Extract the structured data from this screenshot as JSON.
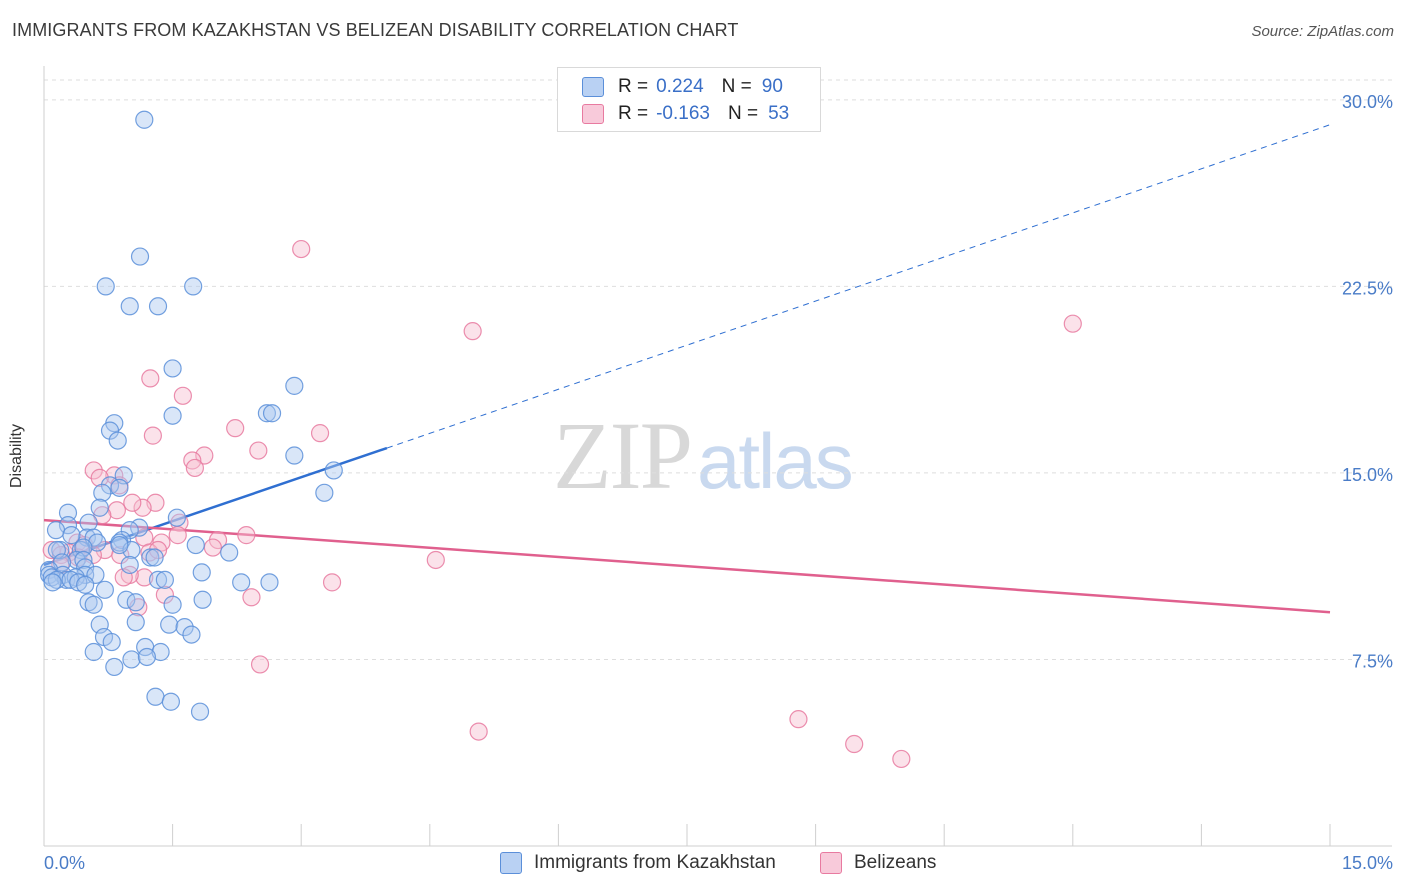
{
  "title": "IMMIGRANTS FROM KAZAKHSTAN VS BELIZEAN DISABILITY CORRELATION CHART",
  "source": "Source: ZipAtlas.com",
  "watermark": {
    "part1": "ZIP",
    "part2": "atlas"
  },
  "legend": {
    "series1": {
      "r_label": "R =",
      "r_value": "0.224",
      "n_label": "N =",
      "n_value": "90"
    },
    "series2": {
      "r_label": "R =",
      "r_value": "-0.163",
      "n_label": "N =",
      "n_value": "53"
    }
  },
  "colors": {
    "blue": "#5b8fd9",
    "blue_fill": "#aac7f0",
    "blue_line": "#2f6fd1",
    "pink": "#e87aa0",
    "pink_fill": "#f6bfd1",
    "pink_line": "#e0608e",
    "tick_text": "#4a7cc7",
    "grid": "#dedede"
  },
  "chart_data": {
    "type": "scatter",
    "title": "IMMIGRANTS FROM KAZAKHSTAN VS BELIZEAN DISABILITY CORRELATION CHART",
    "xlabel": "",
    "ylabel": "Disability",
    "xlim": [
      0,
      15
    ],
    "ylim": [
      0,
      31.2
    ],
    "x_tick_labels": [
      "0.0%",
      "15.0%"
    ],
    "y_tick_values": [
      7.5,
      15.0,
      22.5,
      30.0
    ],
    "y_tick_labels": [
      "7.5%",
      "15.0%",
      "22.5%",
      "30.0%"
    ],
    "grid": true,
    "legend_position": "top-center",
    "series": [
      {
        "name": "Immigrants from Kazakhstan",
        "color": "#5b8fd9",
        "trend": {
          "x0": 0.0,
          "y0": 11.3,
          "x1": 4.0,
          "y1": 16.0,
          "dashed_to_x": 15.0,
          "dashed_to_y": 29.0
        },
        "points": [
          [
            1.17,
            29.2
          ],
          [
            1.12,
            23.7
          ],
          [
            0.72,
            22.5
          ],
          [
            1.74,
            22.5
          ],
          [
            1.0,
            21.7
          ],
          [
            1.33,
            21.7
          ],
          [
            1.5,
            19.2
          ],
          [
            2.92,
            18.5
          ],
          [
            2.6,
            17.4
          ],
          [
            2.66,
            17.4
          ],
          [
            1.5,
            17.3
          ],
          [
            0.82,
            17.0
          ],
          [
            0.77,
            16.7
          ],
          [
            0.86,
            16.3
          ],
          [
            2.92,
            15.7
          ],
          [
            3.38,
            15.1
          ],
          [
            0.93,
            14.9
          ],
          [
            0.77,
            14.5
          ],
          [
            0.88,
            14.4
          ],
          [
            3.27,
            14.2
          ],
          [
            0.68,
            14.2
          ],
          [
            0.65,
            13.6
          ],
          [
            0.28,
            13.4
          ],
          [
            1.55,
            13.2
          ],
          [
            0.52,
            13.0
          ],
          [
            0.28,
            12.9
          ],
          [
            0.14,
            12.7
          ],
          [
            1.11,
            12.8
          ],
          [
            1.0,
            12.7
          ],
          [
            0.5,
            12.4
          ],
          [
            0.58,
            12.4
          ],
          [
            0.32,
            12.5
          ],
          [
            0.91,
            12.3
          ],
          [
            0.88,
            12.2
          ],
          [
            0.62,
            12.2
          ],
          [
            0.43,
            11.9
          ],
          [
            0.19,
            11.9
          ],
          [
            1.02,
            11.9
          ],
          [
            0.88,
            12.1
          ],
          [
            1.77,
            12.1
          ],
          [
            0.46,
            12.0
          ],
          [
            0.15,
            11.9
          ],
          [
            2.16,
            11.8
          ],
          [
            1.24,
            11.6
          ],
          [
            1.29,
            11.6
          ],
          [
            0.38,
            11.5
          ],
          [
            0.46,
            11.5
          ],
          [
            0.21,
            11.4
          ],
          [
            0.06,
            11.1
          ],
          [
            0.48,
            11.2
          ],
          [
            1.0,
            11.3
          ],
          [
            0.06,
            10.9
          ],
          [
            0.22,
            10.9
          ],
          [
            0.48,
            10.9
          ],
          [
            0.09,
            10.8
          ],
          [
            0.26,
            10.7
          ],
          [
            0.37,
            10.8
          ],
          [
            0.6,
            10.9
          ],
          [
            0.15,
            10.7
          ],
          [
            0.31,
            10.7
          ],
          [
            0.1,
            10.6
          ],
          [
            0.4,
            10.6
          ],
          [
            0.48,
            10.5
          ],
          [
            1.33,
            10.7
          ],
          [
            1.41,
            10.7
          ],
          [
            1.84,
            11.0
          ],
          [
            2.3,
            10.6
          ],
          [
            2.63,
            10.6
          ],
          [
            0.71,
            10.3
          ],
          [
            0.52,
            9.8
          ],
          [
            0.58,
            9.7
          ],
          [
            0.96,
            9.9
          ],
          [
            1.07,
            9.8
          ],
          [
            1.5,
            9.7
          ],
          [
            1.85,
            9.9
          ],
          [
            0.65,
            8.9
          ],
          [
            1.07,
            9.0
          ],
          [
            1.46,
            8.9
          ],
          [
            1.64,
            8.8
          ],
          [
            0.7,
            8.4
          ],
          [
            1.18,
            8.0
          ],
          [
            1.72,
            8.5
          ],
          [
            0.79,
            8.2
          ],
          [
            0.58,
            7.8
          ],
          [
            1.02,
            7.5
          ],
          [
            1.36,
            7.8
          ],
          [
            1.2,
            7.6
          ],
          [
            0.82,
            7.2
          ],
          [
            1.3,
            6.0
          ],
          [
            1.48,
            5.8
          ],
          [
            1.82,
            5.4
          ]
        ]
      },
      {
        "name": "Belizeans",
        "color": "#e87aa0",
        "trend": {
          "x0": 0.0,
          "y0": 13.1,
          "x1": 15.0,
          "y1": 9.4
        },
        "points": [
          [
            3.0,
            24.0
          ],
          [
            5.0,
            20.7
          ],
          [
            12.0,
            21.0
          ],
          [
            1.24,
            18.8
          ],
          [
            1.62,
            18.1
          ],
          [
            2.23,
            16.8
          ],
          [
            3.22,
            16.6
          ],
          [
            1.27,
            16.5
          ],
          [
            2.5,
            15.9
          ],
          [
            1.87,
            15.7
          ],
          [
            1.73,
            15.5
          ],
          [
            1.76,
            15.2
          ],
          [
            0.58,
            15.1
          ],
          [
            0.82,
            14.9
          ],
          [
            0.65,
            14.8
          ],
          [
            0.88,
            14.5
          ],
          [
            1.3,
            13.8
          ],
          [
            1.15,
            13.6
          ],
          [
            1.03,
            13.8
          ],
          [
            0.85,
            13.5
          ],
          [
            0.68,
            13.3
          ],
          [
            1.58,
            13.0
          ],
          [
            1.56,
            12.5
          ],
          [
            0.39,
            12.2
          ],
          [
            1.17,
            12.4
          ],
          [
            2.03,
            12.3
          ],
          [
            2.36,
            12.5
          ],
          [
            0.47,
            12.1
          ],
          [
            1.37,
            12.2
          ],
          [
            0.29,
            11.8
          ],
          [
            0.71,
            11.9
          ],
          [
            1.23,
            11.8
          ],
          [
            1.33,
            11.9
          ],
          [
            1.97,
            12.0
          ],
          [
            0.09,
            11.9
          ],
          [
            0.2,
            11.7
          ],
          [
            0.4,
            11.6
          ],
          [
            0.57,
            11.7
          ],
          [
            0.89,
            11.7
          ],
          [
            0.19,
            11.3
          ],
          [
            4.57,
            11.5
          ],
          [
            1.17,
            10.8
          ],
          [
            1.0,
            10.9
          ],
          [
            0.93,
            10.8
          ],
          [
            1.41,
            10.1
          ],
          [
            2.42,
            10.0
          ],
          [
            3.36,
            10.6
          ],
          [
            1.1,
            9.6
          ],
          [
            2.52,
            7.3
          ],
          [
            5.07,
            4.6
          ],
          [
            8.8,
            5.1
          ],
          [
            9.45,
            4.1
          ],
          [
            10.0,
            3.5
          ]
        ]
      }
    ]
  },
  "bottom_legend": {
    "series1": "Immigrants from Kazakhstan",
    "series2": "Belizeans"
  }
}
